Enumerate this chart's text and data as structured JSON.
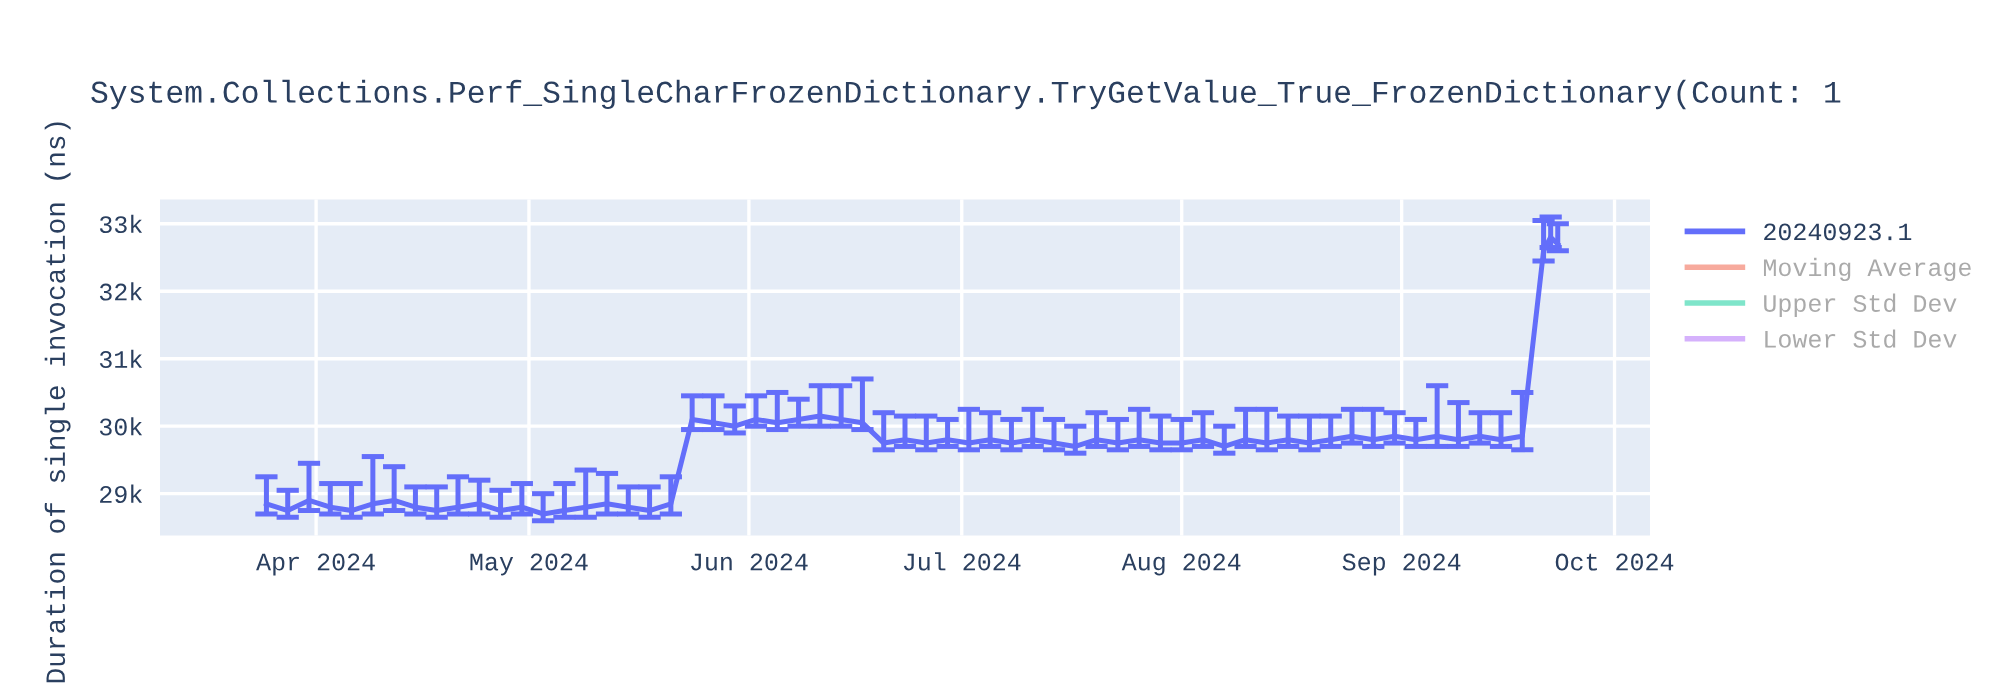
{
  "chart_data": {
    "type": "line",
    "title": "System.Collections.Perf_SingleCharFrozenDictionary.TryGetValue_True_FrozenDictionary(Count: 1",
    "ylabel": "Duration of single invocation (ns)",
    "x": [
      "2024-03-25",
      "2024-03-28",
      "2024-03-31",
      "2024-04-03",
      "2024-04-06",
      "2024-04-09",
      "2024-04-12",
      "2024-04-15",
      "2024-04-18",
      "2024-04-21",
      "2024-04-24",
      "2024-04-27",
      "2024-04-30",
      "2024-05-03",
      "2024-05-06",
      "2024-05-09",
      "2024-05-12",
      "2024-05-15",
      "2024-05-18",
      "2024-05-21",
      "2024-05-24",
      "2024-05-27",
      "2024-05-30",
      "2024-06-02",
      "2024-06-05",
      "2024-06-08",
      "2024-06-11",
      "2024-06-14",
      "2024-06-17",
      "2024-06-20",
      "2024-06-23",
      "2024-06-26",
      "2024-06-29",
      "2024-07-02",
      "2024-07-05",
      "2024-07-08",
      "2024-07-11",
      "2024-07-14",
      "2024-07-17",
      "2024-07-20",
      "2024-07-23",
      "2024-07-26",
      "2024-07-29",
      "2024-08-01",
      "2024-08-04",
      "2024-08-07",
      "2024-08-10",
      "2024-08-13",
      "2024-08-16",
      "2024-08-19",
      "2024-08-22",
      "2024-08-25",
      "2024-08-28",
      "2024-08-31",
      "2024-09-03",
      "2024-09-06",
      "2024-09-09",
      "2024-09-12",
      "2024-09-15",
      "2024-09-18",
      "2024-09-21",
      "2024-09-22",
      "2024-09-23"
    ],
    "series": [
      {
        "name": "20240923.1",
        "color": "#636efa",
        "values": [
          28850,
          28750,
          28900,
          28800,
          28750,
          28850,
          28900,
          28800,
          28750,
          28800,
          28850,
          28750,
          28800,
          28700,
          28750,
          28800,
          28850,
          28800,
          28750,
          28850,
          30100,
          30050,
          30000,
          30100,
          30050,
          30100,
          30150,
          30100,
          30050,
          29750,
          29800,
          29750,
          29800,
          29750,
          29800,
          29750,
          29800,
          29750,
          29700,
          29800,
          29750,
          29800,
          29750,
          29750,
          29800,
          29700,
          29800,
          29750,
          29800,
          29750,
          29800,
          29850,
          29800,
          29850,
          29800,
          29850,
          29800,
          29850,
          29800,
          29850,
          32600,
          32800,
          32700
        ],
        "errors": [
          [
            28700,
            29250
          ],
          [
            28650,
            29050
          ],
          [
            28750,
            29450
          ],
          [
            28700,
            29150
          ],
          [
            28650,
            29150
          ],
          [
            28700,
            29550
          ],
          [
            28750,
            29400
          ],
          [
            28700,
            29100
          ],
          [
            28650,
            29100
          ],
          [
            28700,
            29250
          ],
          [
            28700,
            29200
          ],
          [
            28650,
            29050
          ],
          [
            28700,
            29150
          ],
          [
            28600,
            29000
          ],
          [
            28650,
            29150
          ],
          [
            28650,
            29350
          ],
          [
            28700,
            29300
          ],
          [
            28700,
            29100
          ],
          [
            28650,
            29100
          ],
          [
            28700,
            29250
          ],
          [
            29950,
            30450
          ],
          [
            29950,
            30450
          ],
          [
            29900,
            30300
          ],
          [
            30000,
            30450
          ],
          [
            29950,
            30500
          ],
          [
            30000,
            30400
          ],
          [
            30000,
            30600
          ],
          [
            30000,
            30600
          ],
          [
            29950,
            30700
          ],
          [
            29650,
            30200
          ],
          [
            29700,
            30150
          ],
          [
            29650,
            30150
          ],
          [
            29700,
            30100
          ],
          [
            29650,
            30250
          ],
          [
            29700,
            30200
          ],
          [
            29650,
            30100
          ],
          [
            29700,
            30250
          ],
          [
            29650,
            30100
          ],
          [
            29600,
            30000
          ],
          [
            29700,
            30200
          ],
          [
            29650,
            30100
          ],
          [
            29700,
            30250
          ],
          [
            29650,
            30150
          ],
          [
            29650,
            30100
          ],
          [
            29700,
            30200
          ],
          [
            29600,
            30000
          ],
          [
            29700,
            30250
          ],
          [
            29650,
            30250
          ],
          [
            29700,
            30150
          ],
          [
            29650,
            30150
          ],
          [
            29700,
            30150
          ],
          [
            29750,
            30250
          ],
          [
            29700,
            30250
          ],
          [
            29750,
            30200
          ],
          [
            29700,
            30100
          ],
          [
            29700,
            30600
          ],
          [
            29700,
            30350
          ],
          [
            29750,
            30200
          ],
          [
            29700,
            30200
          ],
          [
            29650,
            30500
          ],
          [
            32450,
            33050
          ],
          [
            32650,
            33100
          ],
          [
            32600,
            33000
          ]
        ]
      },
      {
        "name": "Moving Average",
        "color": "#ef553b",
        "values": [
          null,
          null,
          null,
          null,
          null,
          null,
          null,
          null,
          null,
          null,
          null,
          null,
          null,
          null,
          null,
          null,
          null,
          null,
          null,
          null,
          null,
          null,
          null,
          null,
          null,
          null,
          null,
          null,
          null,
          null,
          null,
          null,
          null,
          null,
          null,
          null,
          null,
          null,
          null,
          null,
          null,
          null,
          null,
          null,
          null,
          null,
          null,
          null,
          null,
          null,
          null,
          null,
          null,
          null,
          null,
          null,
          null,
          null,
          null,
          null,
          null,
          null,
          null
        ]
      },
      {
        "name": "Upper Std Dev",
        "color": "#00cc96",
        "values": [
          null,
          null,
          null,
          null,
          null,
          null,
          null,
          null,
          null,
          null,
          null,
          null,
          null,
          null,
          null,
          null,
          null,
          null,
          null,
          null,
          null,
          null,
          null,
          null,
          null,
          null,
          null,
          null,
          null,
          null,
          null,
          null,
          null,
          null,
          null,
          null,
          null,
          null,
          null,
          null,
          null,
          null,
          null,
          null,
          null,
          null,
          null,
          null,
          null,
          null,
          null,
          null,
          null,
          null,
          null,
          null,
          null,
          null,
          null,
          null,
          null,
          null,
          null
        ]
      },
      {
        "name": "Lower Std Dev",
        "color": "#ab63fa",
        "values": [
          null,
          null,
          null,
          null,
          null,
          null,
          null,
          null,
          null,
          null,
          null,
          null,
          null,
          null,
          null,
          null,
          null,
          null,
          null,
          null,
          null,
          null,
          null,
          null,
          null,
          null,
          null,
          null,
          null,
          null,
          null,
          null,
          null,
          null,
          null,
          null,
          null,
          null,
          null,
          null,
          null,
          null,
          null,
          null,
          null,
          null,
          null,
          null,
          null,
          null,
          null,
          null,
          null,
          null,
          null,
          null,
          null,
          null,
          null,
          null,
          null,
          null,
          null
        ]
      }
    ],
    "xlim": [
      "2024-03-10",
      "2024-10-06"
    ],
    "xticks": [
      {
        "value": "2024-04-01",
        "label": "Apr 2024"
      },
      {
        "value": "2024-05-01",
        "label": "May 2024"
      },
      {
        "value": "2024-06-01",
        "label": "Jun 2024"
      },
      {
        "value": "2024-07-01",
        "label": "Jul 2024"
      },
      {
        "value": "2024-08-01",
        "label": "Aug 2024"
      },
      {
        "value": "2024-09-01",
        "label": "Sep 2024"
      },
      {
        "value": "2024-10-01",
        "label": "Oct 2024"
      }
    ],
    "ylim": [
      28380,
      33360
    ],
    "yticks": [
      {
        "value": 29000,
        "label": "29k"
      },
      {
        "value": 30000,
        "label": "30k"
      },
      {
        "value": 31000,
        "label": "31k"
      },
      {
        "value": 32000,
        "label": "32k"
      },
      {
        "value": 33000,
        "label": "33k"
      }
    ],
    "grid": true,
    "legend": "top right",
    "marker": "none",
    "line_style": "solid"
  }
}
